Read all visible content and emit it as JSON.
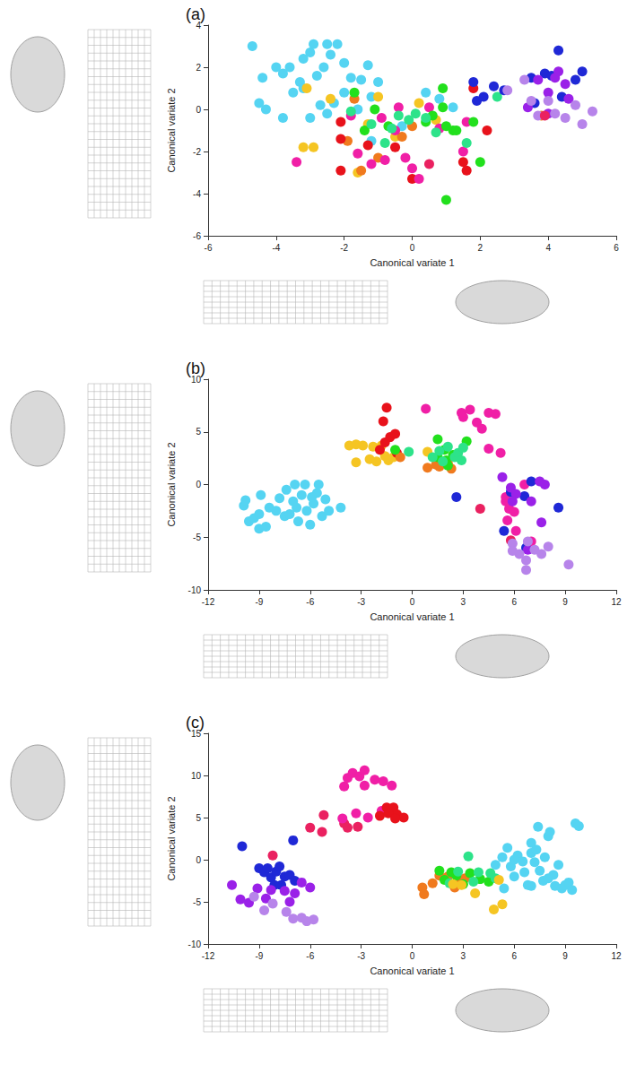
{
  "chart_data": [
    {
      "type": "scatter",
      "title": "(a)",
      "x_label": "Canonical variate 1",
      "y_label": "Canonical variate 2",
      "xlim": [
        -6,
        6
      ],
      "ylim": [
        -6,
        4
      ],
      "xticks": [
        -6,
        -4,
        -2,
        0,
        2,
        4,
        6
      ],
      "yticks": [
        -6,
        -4,
        -2,
        0,
        2,
        4
      ],
      "grid": false,
      "marker": "circle",
      "series": [
        {
          "color": "#55d4f2",
          "x": [
            -4.7,
            -4.4,
            -4.5,
            -4.3,
            -4.0,
            -3.8,
            -3.6,
            -3.3,
            -3.2,
            -3.0,
            -2.9,
            -2.8,
            -2.6,
            -2.5,
            -2.4,
            -2.2,
            -2.0,
            -1.8,
            -3.5,
            -3.2,
            -3.0,
            -2.7,
            -2.3,
            -2.0,
            -1.5,
            -1.3,
            -1.0,
            -3.8,
            -2.5,
            -1.6,
            -1.2,
            0.4,
            0.8,
            1.2,
            -0.3,
            -1.2
          ],
          "values": [
            3.0,
            1.5,
            0.3,
            0.0,
            2.0,
            1.7,
            2.0,
            1.3,
            2.4,
            2.7,
            3.1,
            1.6,
            2.0,
            3.1,
            2.6,
            3.1,
            2.2,
            1.5,
            0.8,
            1.0,
            -0.4,
            0.2,
            0.3,
            0.8,
            1.4,
            2.1,
            1.3,
            -0.4,
            -0.2,
            0.0,
            -1.5,
            0.8,
            0.5,
            0.1,
            -0.8,
            0.6
          ]
        },
        {
          "color": "#f5c523",
          "x": [
            -3.1,
            -3.2,
            -2.9,
            -1.3,
            -1.0,
            0.2,
            0.7,
            -0.5,
            -1.6,
            -2.4
          ],
          "values": [
            1.0,
            -1.8,
            -1.8,
            -0.7,
            0.6,
            0.3,
            -0.5,
            -1.3,
            -3.0,
            0.5
          ]
        },
        {
          "color": "#f07a1e",
          "x": [
            -1.7,
            -1.5,
            -1.0,
            -0.3,
            0.0,
            -1.9,
            3.8
          ],
          "values": [
            0.5,
            -2.9,
            -2.3,
            -1.3,
            -0.8,
            -1.5,
            -0.3
          ]
        },
        {
          "color": "#e8121b",
          "x": [
            -2.1,
            -2.1,
            -2.1,
            -1.3,
            0.0,
            1.6,
            1.5,
            2.2,
            1.8,
            -0.5
          ],
          "values": [
            -0.6,
            -1.4,
            -2.9,
            -1.7,
            -3.3,
            -2.9,
            -2.5,
            -1.0,
            1.0,
            -1.8
          ]
        },
        {
          "color": "#f01fa6",
          "x": [
            -3.4,
            -1.6,
            -1.2,
            -0.8,
            -0.5,
            -0.4,
            -0.2,
            0.0,
            0.2,
            0.5,
            0.8,
            1.5,
            1.6,
            -0.9,
            -1.8
          ],
          "values": [
            -2.5,
            -2.1,
            -2.6,
            -2.4,
            -1.0,
            0.1,
            -2.3,
            -2.8,
            -3.3,
            0.1,
            -0.9,
            -2.0,
            -0.6,
            -0.4,
            -0.3
          ]
        },
        {
          "color": "#22e01d",
          "x": [
            -1.1,
            -0.7,
            0.4,
            0.6,
            0.9,
            1.0,
            1.2,
            1.8,
            2.0,
            1.0,
            1.3,
            -1.7,
            -1.4,
            0.9
          ],
          "values": [
            0.0,
            -0.8,
            -0.6,
            -0.3,
            0.1,
            -0.8,
            -1.0,
            -0.6,
            -2.5,
            -4.3,
            -1.0,
            0.8,
            -1.0,
            1.0
          ]
        },
        {
          "color": "#2de38a",
          "x": [
            -1.2,
            -0.1,
            0.1,
            0.4,
            -0.4,
            -0.6,
            0.7,
            1.6,
            -0.8,
            -1.8,
            2.5
          ],
          "values": [
            -0.7,
            -0.5,
            -0.2,
            -0.4,
            -0.3,
            -0.9,
            -1.1,
            -1.6,
            -1.6,
            -0.1,
            0.6
          ]
        },
        {
          "color": "#1f28d6",
          "x": [
            1.8,
            1.9,
            2.1,
            2.4,
            2.7,
            3.5,
            3.6,
            3.9,
            4.3,
            4.1,
            4.4,
            4.8,
            5.0
          ],
          "values": [
            1.3,
            0.4,
            0.6,
            1.1,
            0.9,
            1.5,
            0.3,
            1.7,
            2.8,
            1.6,
            0.6,
            1.4,
            1.8
          ]
        },
        {
          "color": "#9a21e8",
          "x": [
            3.4,
            3.7,
            4.0,
            4.2,
            4.3,
            4.5,
            4.6,
            4.0
          ],
          "values": [
            0.1,
            1.4,
            0.8,
            1.5,
            1.8,
            1.2,
            0.5,
            -0.2
          ]
        },
        {
          "color": "#b784ea",
          "x": [
            2.8,
            3.3,
            3.7,
            4.0,
            4.2,
            4.5,
            4.8,
            5.0,
            5.3,
            3.5
          ],
          "values": [
            0.9,
            1.4,
            -0.3,
            0.4,
            -0.2,
            -0.4,
            0.2,
            -0.7,
            -0.1,
            0.4
          ]
        },
        {
          "color": "#ea2160",
          "x": [
            3.9,
            0.5
          ],
          "values": [
            -0.3,
            -2.6
          ]
        }
      ]
    },
    {
      "type": "scatter",
      "title": "(b)",
      "x_label": "Canonical variate 1",
      "y_label": "Canonical variate 2",
      "xlim": [
        -12,
        12
      ],
      "ylim": [
        -10,
        10
      ],
      "xticks": [
        -12,
        -9,
        -6,
        -3,
        0,
        3,
        6,
        9,
        12
      ],
      "yticks": [
        -10,
        -5,
        0,
        5,
        10
      ],
      "grid": false,
      "marker": "circle",
      "series": [
        {
          "color": "#55d4f2",
          "x": [
            -9.9,
            -9.8,
            -9.6,
            -9.3,
            -9.0,
            -9.0,
            -8.6,
            -8.4,
            -8.0,
            -7.8,
            -7.5,
            -7.4,
            -7.0,
            -6.8,
            -6.7,
            -6.5,
            -6.3,
            -6.2,
            -6.0,
            -5.8,
            -5.6,
            -5.5,
            -5.3,
            -5.1,
            -4.9,
            -6.9,
            -8.9,
            -4.2,
            -7.2,
            -5.9
          ],
          "values": [
            -2.0,
            -1.5,
            -3.5,
            -3.2,
            -2.8,
            -4.2,
            -4.0,
            -2.2,
            -2.5,
            -1.3,
            -3.0,
            -0.5,
            -1.6,
            -2.2,
            -3.5,
            -1.0,
            0.0,
            -2.5,
            -3.8,
            -1.8,
            -0.8,
            0.0,
            -3.0,
            -1.4,
            -2.5,
            0.0,
            -1.0,
            -2.2,
            -2.8,
            -1.2
          ]
        },
        {
          "color": "#f5c523",
          "x": [
            -3.7,
            -3.3,
            -2.9,
            -3.3,
            -2.5,
            -2.1,
            -1.6,
            -1.8,
            -1.4,
            -1.1,
            -2.3,
            0.9
          ],
          "values": [
            3.7,
            3.8,
            3.7,
            2.1,
            2.4,
            2.2,
            2.7,
            3.7,
            2.3,
            2.6,
            3.6,
            3.1
          ]
        },
        {
          "color": "#e8121b",
          "x": [
            -1.5,
            -1.7,
            -1.3,
            -1.0,
            -1.6,
            -1.9,
            -0.9
          ],
          "values": [
            7.3,
            6.0,
            4.5,
            4.8,
            4.0,
            3.3,
            3.0
          ]
        },
        {
          "color": "#f07a1e",
          "x": [
            0.9,
            1.4,
            1.6,
            2.1,
            2.3,
            -0.7
          ],
          "values": [
            1.6,
            1.9,
            1.7,
            2.0,
            1.5,
            2.6
          ]
        },
        {
          "color": "#22e01d",
          "x": [
            -1.0,
            1.5,
            1.9,
            2.0,
            2.4,
            3.2,
            2.1,
            1.5
          ],
          "values": [
            3.3,
            4.3,
            3.3,
            2.3,
            2.8,
            4.1,
            1.8,
            2.6
          ]
        },
        {
          "color": "#2de38a",
          "x": [
            1.2,
            1.6,
            2.1,
            2.5,
            2.7,
            -0.2,
            2.9,
            1.8,
            3.0
          ],
          "values": [
            2.6,
            3.2,
            3.6,
            2.6,
            3.0,
            3.1,
            2.3,
            2.2,
            3.5
          ]
        },
        {
          "color": "#f01fa6",
          "x": [
            0.8,
            2.9,
            3.4,
            3.0,
            3.8,
            4.1,
            4.5,
            4.9,
            4.5,
            5.2,
            5.5,
            5.7,
            5.6,
            6.1,
            6.0,
            7.0,
            5.5,
            6.6
          ],
          "values": [
            7.2,
            6.8,
            7.1,
            6.4,
            5.9,
            5.3,
            6.8,
            6.7,
            3.4,
            3.0,
            -1.6,
            -2.3,
            -3.4,
            -4.4,
            -2.6,
            -5.4,
            -1.2,
            0.0
          ]
        },
        {
          "color": "#ea2160",
          "x": [
            4.0,
            5.8
          ],
          "values": [
            -2.3,
            -5.3
          ]
        },
        {
          "color": "#1f28d6",
          "x": [
            2.6,
            5.8,
            6.6,
            7.0,
            8.6,
            5.4,
            6.7
          ],
          "values": [
            -1.2,
            -0.7,
            -1.1,
            0.3,
            -2.2,
            -4.4,
            -6.0
          ]
        },
        {
          "color": "#9a21e8",
          "x": [
            5.3,
            5.8,
            7.0,
            7.5,
            7.8,
            7.6,
            6.8,
            6.1,
            5.9
          ],
          "values": [
            0.7,
            -0.3,
            -1.6,
            0.3,
            0.0,
            -3.6,
            -6.2,
            -0.9,
            -1.6
          ]
        },
        {
          "color": "#b784ea",
          "x": [
            5.9,
            6.3,
            6.7,
            6.7,
            7.2,
            7.6,
            8.0,
            9.2,
            5.9,
            6.8
          ],
          "values": [
            -5.6,
            -6.6,
            -7.2,
            -8.1,
            -6.2,
            -6.6,
            -5.9,
            -7.6,
            -6.3,
            -5.4
          ]
        }
      ]
    },
    {
      "type": "scatter",
      "title": "(c)",
      "x_label": "Canonical variate 1",
      "y_label": "Canonical variate 2",
      "xlim": [
        -12,
        12
      ],
      "ylim": [
        -10,
        15
      ],
      "xticks": [
        -12,
        -9,
        -6,
        -3,
        0,
        3,
        6,
        9,
        12
      ],
      "yticks": [
        -10,
        -5,
        0,
        5,
        10,
        15
      ],
      "grid": false,
      "marker": "circle",
      "series": [
        {
          "color": "#1f28d6",
          "x": [
            -10.0,
            -9.0,
            -8.7,
            -8.5,
            -8.3,
            -8.0,
            -7.7,
            -7.5,
            -7.2,
            -7.0,
            -6.9,
            -8.1,
            -7.8
          ],
          "values": [
            1.6,
            -1.0,
            -1.5,
            -1.0,
            -2.1,
            -1.4,
            -3.0,
            -2.0,
            -1.8,
            2.3,
            -2.5,
            -3.0,
            -0.8
          ]
        },
        {
          "color": "#9a21e8",
          "x": [
            -10.6,
            -10.1,
            -9.6,
            -9.1,
            -8.3,
            -7.5,
            -6.9,
            -6.5,
            -6.0,
            -8.6,
            -7.2
          ],
          "values": [
            -3.0,
            -4.7,
            -5.1,
            -3.4,
            -3.6,
            -3.7,
            -4.0,
            -2.7,
            -3.3,
            -4.6,
            -5.0
          ]
        },
        {
          "color": "#b784ea",
          "x": [
            -8.7,
            -8.2,
            -7.4,
            -6.5,
            -6.2,
            -7.0,
            -5.8,
            -9.3
          ],
          "values": [
            -6.0,
            -5.2,
            -6.2,
            -6.9,
            -7.3,
            -7.0,
            -7.1,
            -4.4
          ]
        },
        {
          "color": "#ea2160",
          "x": [
            -6.0,
            -5.2,
            -5.3,
            -8.2,
            -4.0,
            -3.8,
            -3.2
          ],
          "values": [
            3.8,
            5.3,
            3.3,
            0.5,
            4.3,
            3.8,
            3.9
          ]
        },
        {
          "color": "#f01fa6",
          "x": [
            -4.0,
            -3.8,
            -3.5,
            -3.1,
            -2.8,
            -2.8,
            -2.2,
            -1.7,
            -1.2,
            -3.3,
            -2.6,
            -4.1,
            -1.8
          ],
          "values": [
            8.7,
            9.7,
            10.3,
            9.9,
            10.6,
            8.8,
            9.5,
            9.3,
            8.8,
            5.5,
            5.0,
            4.9,
            5.8
          ]
        },
        {
          "color": "#e8121b",
          "x": [
            -1.9,
            -1.5,
            -1.1,
            -0.9,
            -0.5,
            -1.4,
            -1.0
          ],
          "values": [
            5.2,
            6.2,
            6.2,
            5.4,
            5.0,
            5.5,
            4.9
          ]
        },
        {
          "color": "#f07a1e",
          "x": [
            0.6,
            0.7,
            1.2,
            1.6,
            2.1,
            2.5,
            3.1,
            2.8
          ],
          "values": [
            -3.3,
            -4.1,
            -2.8,
            -1.9,
            -2.0,
            -3.3,
            -2.2,
            -2.8
          ]
        },
        {
          "color": "#22e01d",
          "x": [
            1.6,
            1.9,
            2.3,
            2.6,
            3.0,
            3.4,
            4.0,
            4.5
          ],
          "values": [
            -1.3,
            -2.4,
            -1.5,
            -1.9,
            -2.9,
            -1.6,
            -2.3,
            -2.6
          ]
        },
        {
          "color": "#2de38a",
          "x": [
            2.2,
            2.7,
            3.3,
            3.9,
            4.6,
            4.9,
            3.6
          ],
          "values": [
            -2.8,
            -1.4,
            0.4,
            -1.5,
            -1.6,
            -2.2,
            -2.6
          ]
        },
        {
          "color": "#f5c523",
          "x": [
            2.9,
            3.7,
            4.8,
            5.3,
            5.1,
            2.4
          ],
          "values": [
            -3.0,
            -4.0,
            -5.9,
            -5.3,
            -2.4,
            -2.9
          ]
        },
        {
          "color": "#55d4f2",
          "x": [
            4.9,
            5.3,
            5.6,
            5.8,
            6.0,
            6.2,
            6.5,
            6.6,
            6.8,
            7.0,
            7.0,
            7.2,
            7.4,
            7.5,
            7.7,
            7.8,
            8.0,
            8.1,
            8.3,
            8.4,
            8.6,
            8.8,
            9.0,
            9.2,
            9.4,
            9.6,
            9.8,
            7.0,
            6.0,
            8.0,
            5.4,
            7.3
          ],
          "values": [
            -0.6,
            0.3,
            1.4,
            -0.8,
            -2.0,
            0.5,
            -0.2,
            -1.5,
            -3.0,
            2.0,
            0.8,
            -0.3,
            3.9,
            -1.3,
            -2.5,
            0.3,
            2.8,
            3.3,
            -1.8,
            -3.1,
            -0.6,
            -3.4,
            -3.0,
            -2.7,
            -3.6,
            4.3,
            4.0,
            -3.1,
            0.0,
            -2.2,
            -3.4,
            1.2
          ]
        }
      ]
    }
  ]
}
